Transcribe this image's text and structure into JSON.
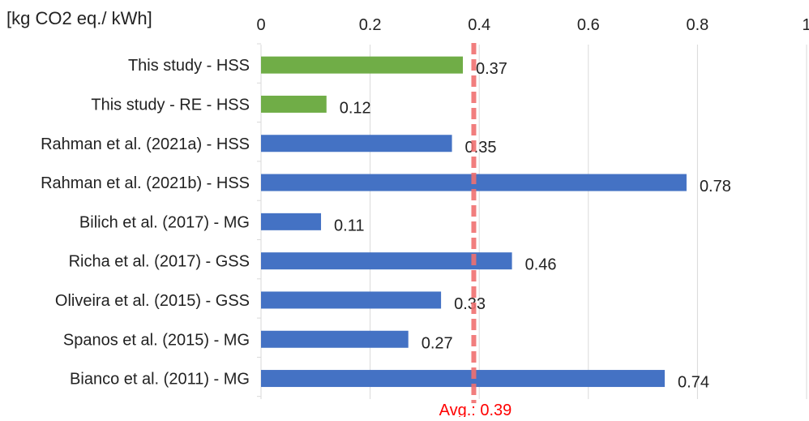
{
  "chart_data": {
    "type": "bar",
    "orientation": "horizontal",
    "unit_label": "[kg CO2 eq./ kWh]",
    "categories": [
      "This study - HSS",
      "This study - RE - HSS",
      "Rahman et al. (2021a) - HSS",
      "Rahman et al. (2021b) - HSS",
      "Bilich et al. (2017) - MG",
      "Richa et al. (2017) - GSS",
      "Oliveira et al. (2015) - GSS",
      "Spanos et al. (2015) - MG",
      "Bianco et al. (2011) - MG"
    ],
    "values": [
      0.37,
      0.12,
      0.35,
      0.78,
      0.11,
      0.46,
      0.33,
      0.27,
      0.74
    ],
    "data_labels": [
      "0.37",
      "0.12",
      "0.35",
      "0.78",
      "0.11",
      "0.46",
      "0.33",
      "0.27",
      "0.74"
    ],
    "bar_colors": [
      "#70ad47",
      "#70ad47",
      "#4472c4",
      "#4472c4",
      "#4472c4",
      "#4472c4",
      "#4472c4",
      "#4472c4",
      "#4472c4"
    ],
    "xlim": [
      0,
      1
    ],
    "x_ticks": [
      0,
      0.2,
      0.4,
      0.6,
      0.8,
      1
    ],
    "x_tick_labels": [
      "0",
      "0.2",
      "0.4",
      "0.6",
      "0.8",
      "1"
    ],
    "x_axis_position": "top",
    "grid": true,
    "average": {
      "value": 0.39,
      "label": "Avg.: 0.39",
      "color": "#f07070",
      "label_color": "#ff0000",
      "style": "dashed"
    }
  }
}
